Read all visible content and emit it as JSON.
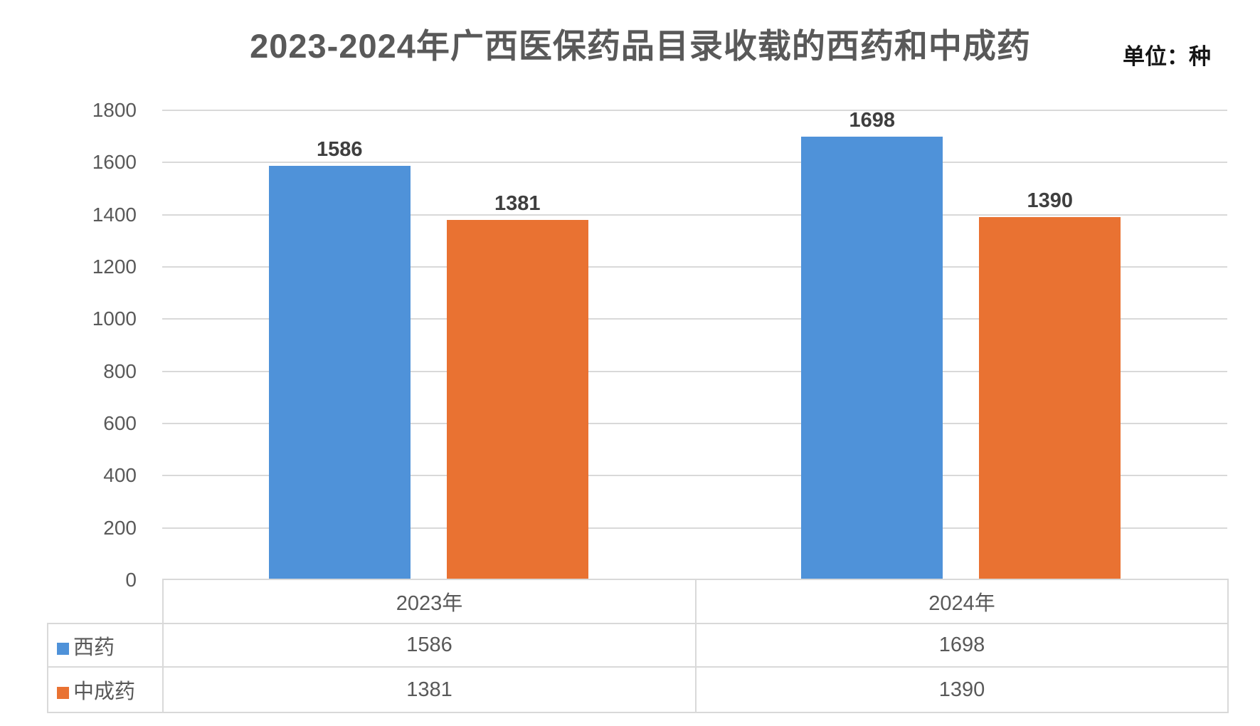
{
  "title": "2023-2024年广西医保药品目录收载的西药和中成药",
  "unit_label": "单位：种",
  "colors": {
    "series_blue": "#4F92D9",
    "series_orange": "#E97232",
    "gridline": "#D9D9D9",
    "table_border": "#D9D9D9",
    "title_text": "#595959",
    "axis_text": "#595959",
    "table_text": "#595959",
    "value_label_text": "#3F3F3F",
    "unit_text": "#151515",
    "background": "#FFFFFF"
  },
  "chart_data": {
    "type": "bar",
    "title": "2023-2024年广西医保药品目录收载的西药和中成药",
    "unit": "种",
    "categories": [
      "2023年",
      "2024年"
    ],
    "series": [
      {
        "name": "西药",
        "key": "xiyao",
        "color": "#4F92D9",
        "values": [
          1586,
          1698
        ]
      },
      {
        "name": "中成药",
        "key": "zhongchengyao",
        "color": "#E97232",
        "values": [
          1381,
          1390
        ]
      }
    ],
    "ylim": [
      0,
      1800
    ],
    "yticks": [
      0,
      200,
      400,
      600,
      800,
      1000,
      1200,
      1400,
      1600,
      1800
    ],
    "grid": true,
    "data_labels": true,
    "legend_position": "table-rows-left",
    "table_shown": true
  }
}
